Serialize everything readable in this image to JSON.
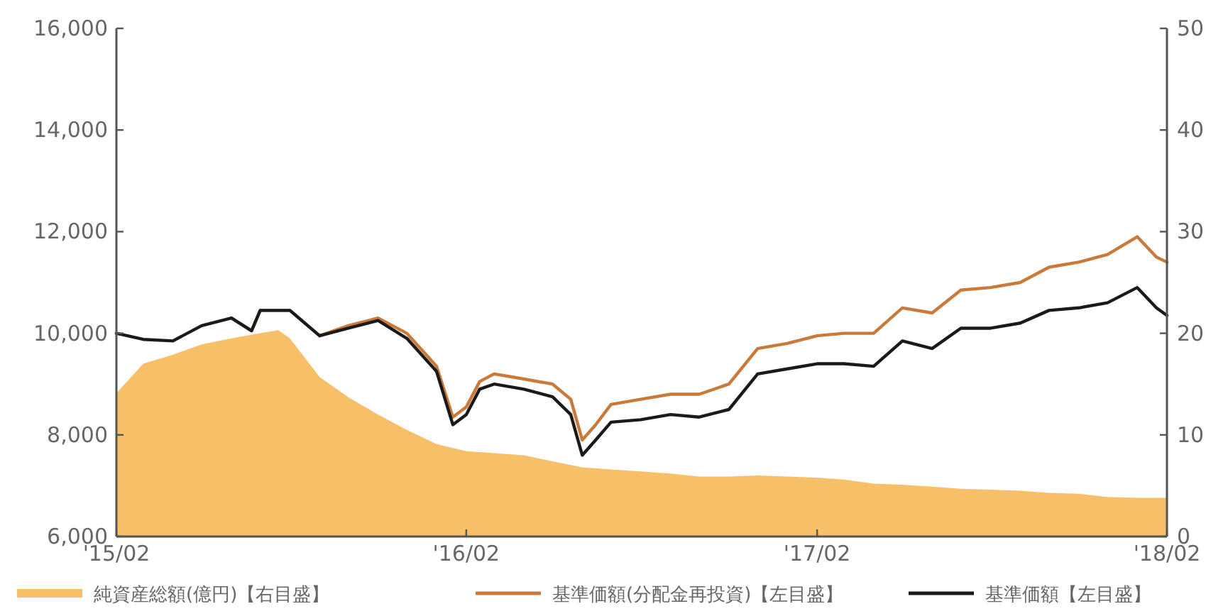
{
  "chart_data": {
    "type": "line",
    "xlim": [
      "2015-02",
      "2018-02"
    ],
    "xticks": [
      {
        "value": "2015-02",
        "label": "'15/02"
      },
      {
        "value": "2016-02",
        "label": "'16/02"
      },
      {
        "value": "2017-02",
        "label": "'17/02"
      },
      {
        "value": "2018-02",
        "label": "'18/02"
      }
    ],
    "ylim": [
      6000,
      16000
    ],
    "yticks": [
      {
        "value": 6000,
        "label": "6,000"
      },
      {
        "value": 8000,
        "label": "8,000"
      },
      {
        "value": 10000,
        "label": "10,000"
      },
      {
        "value": 12000,
        "label": "12,000"
      },
      {
        "value": 14000,
        "label": "14,000"
      },
      {
        "value": 16000,
        "label": "16,000"
      }
    ],
    "y2lim": [
      0,
      50
    ],
    "y2ticks": [
      0,
      10,
      20,
      30,
      40,
      50
    ],
    "legend": "bottom",
    "series": [
      {
        "name": "純資産総額(億円)【右目盛】",
        "type": "area",
        "axis": "y2",
        "color": "#f7c068",
        "x": [
          "2015-02",
          "2015-03",
          "2015-04",
          "2015-05",
          "2015-06",
          "2015-07",
          "2015-07-20",
          "2015-08",
          "2015-09",
          "2015-10",
          "2015-11",
          "2015-12",
          "2016-01",
          "2016-02",
          "2016-03",
          "2016-04",
          "2016-05",
          "2016-06",
          "2016-07",
          "2016-08",
          "2016-09",
          "2016-10",
          "2016-11",
          "2016-12",
          "2017-01",
          "2017-02",
          "2017-03",
          "2017-04",
          "2017-05",
          "2017-06",
          "2017-07",
          "2017-08",
          "2017-09",
          "2017-10",
          "2017-11",
          "2017-12",
          "2018-01",
          "2018-02"
        ],
        "values": [
          14.1,
          17.0,
          17.9,
          18.9,
          19.5,
          20.0,
          20.3,
          19.5,
          15.7,
          13.7,
          12.0,
          10.5,
          9.1,
          8.4,
          8.2,
          8.0,
          7.4,
          6.8,
          6.6,
          6.4,
          6.2,
          5.9,
          5.9,
          6.0,
          5.9,
          5.8,
          5.6,
          5.2,
          5.1,
          4.9,
          4.7,
          4.6,
          4.5,
          4.3,
          4.2,
          3.9,
          3.8,
          3.8
        ]
      },
      {
        "name": "基準価額(分配金再投資)【左目盛】",
        "type": "line",
        "axis": "y",
        "color": "#c97a3a",
        "x": [
          "2015-06",
          "2015-06-22",
          "2015-07",
          "2015-08",
          "2015-09",
          "2015-10",
          "2015-11",
          "2015-12",
          "2016-01",
          "2016-01-18",
          "2016-02",
          "2016-02-15",
          "2016-03",
          "2016-04",
          "2016-05",
          "2016-05-20",
          "2016-06",
          "2016-06-15",
          "2016-07",
          "2016-08",
          "2016-09",
          "2016-10",
          "2016-11",
          "2016-12",
          "2017-01",
          "2017-02",
          "2017-03",
          "2017-04",
          "2017-05",
          "2017-06",
          "2017-07",
          "2017-08",
          "2017-09",
          "2017-10",
          "2017-11",
          "2017-12",
          "2018-01",
          "2018-01-21",
          "2018-02"
        ],
        "values": [
          10300,
          10050,
          10450,
          10450,
          9950,
          10150,
          10300,
          10000,
          9350,
          8350,
          8550,
          9050,
          9200,
          9100,
          9000,
          8700,
          7900,
          8200,
          8600,
          8700,
          8800,
          8800,
          9000,
          9700,
          9800,
          9950,
          10000,
          10000,
          10500,
          10400,
          10850,
          10900,
          11000,
          11300,
          11400,
          11550,
          11900,
          11500,
          11400
        ]
      },
      {
        "name": "基準価額【左目盛】",
        "type": "line",
        "axis": "y",
        "color": "#1a1a1a",
        "x": [
          "2015-02",
          "2015-03",
          "2015-04",
          "2015-05",
          "2015-06",
          "2015-06-22",
          "2015-07",
          "2015-08",
          "2015-09",
          "2015-10",
          "2015-11",
          "2015-12",
          "2016-01",
          "2016-01-18",
          "2016-02",
          "2016-02-15",
          "2016-03",
          "2016-04",
          "2016-05",
          "2016-05-20",
          "2016-06",
          "2016-06-15",
          "2016-07",
          "2016-08",
          "2016-09",
          "2016-10",
          "2016-11",
          "2016-12",
          "2017-01",
          "2017-02",
          "2017-03",
          "2017-04",
          "2017-05",
          "2017-06",
          "2017-07",
          "2017-08",
          "2017-09",
          "2017-10",
          "2017-11",
          "2017-12",
          "2018-01",
          "2018-01-21",
          "2018-02"
        ],
        "values": [
          10000,
          9880,
          9850,
          10150,
          10300,
          10050,
          10450,
          10450,
          9950,
          10100,
          10250,
          9900,
          9250,
          8200,
          8400,
          8900,
          9000,
          8900,
          8750,
          8400,
          7600,
          7900,
          8250,
          8300,
          8400,
          8350,
          8500,
          9200,
          9300,
          9400,
          9400,
          9350,
          9850,
          9700,
          10100,
          10100,
          10200,
          10450,
          10500,
          10600,
          10900,
          10500,
          10350
        ]
      }
    ]
  }
}
